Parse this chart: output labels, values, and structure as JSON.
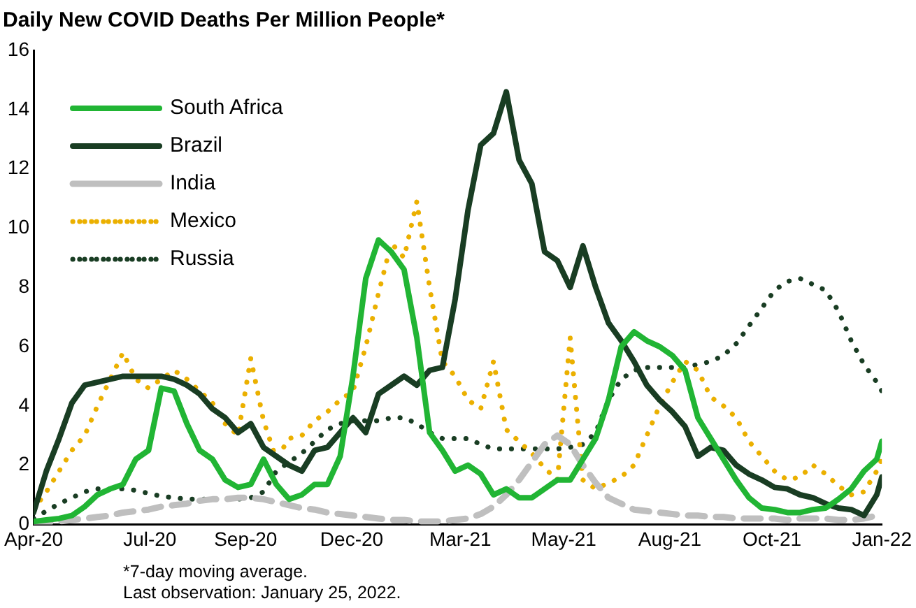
{
  "chart_data": {
    "type": "line",
    "title": "Daily New COVID Deaths Per Million People*",
    "x": [
      "2020-04-01",
      "2020-04-11",
      "2020-04-21",
      "2020-05-01",
      "2020-05-11",
      "2020-05-21",
      "2020-05-31",
      "2020-06-10",
      "2020-06-20",
      "2020-06-30",
      "2020-07-10",
      "2020-07-20",
      "2020-07-30",
      "2020-08-09",
      "2020-08-19",
      "2020-08-29",
      "2020-09-08",
      "2020-09-18",
      "2020-09-28",
      "2020-10-08",
      "2020-10-18",
      "2020-10-28",
      "2020-11-07",
      "2020-11-17",
      "2020-11-27",
      "2020-12-07",
      "2020-12-17",
      "2020-12-27",
      "2021-01-06",
      "2021-01-16",
      "2021-01-26",
      "2021-02-05",
      "2021-02-15",
      "2021-02-25",
      "2021-03-07",
      "2021-03-17",
      "2021-03-27",
      "2021-04-06",
      "2021-04-16",
      "2021-04-26",
      "2021-05-06",
      "2021-05-16",
      "2021-05-26",
      "2021-06-05",
      "2021-06-15",
      "2021-06-25",
      "2021-07-05",
      "2021-07-15",
      "2021-07-25",
      "2021-08-04",
      "2021-08-14",
      "2021-08-24",
      "2021-09-03",
      "2021-09-13",
      "2021-09-23",
      "2021-10-03",
      "2021-10-13",
      "2021-10-23",
      "2021-11-02",
      "2021-11-12",
      "2021-11-22",
      "2021-12-02",
      "2021-12-12",
      "2021-12-22",
      "2022-01-01",
      "2022-01-11",
      "2022-01-21",
      "2022-01-25"
    ],
    "series": [
      {
        "name": "South Africa",
        "color": "#21b534",
        "line_style": "solid",
        "values": [
          0.1,
          0.15,
          0.2,
          0.3,
          0.6,
          1.0,
          1.2,
          1.35,
          2.2,
          2.5,
          4.6,
          4.5,
          3.4,
          2.5,
          2.2,
          1.5,
          1.25,
          1.35,
          2.2,
          1.35,
          0.85,
          1.0,
          1.35,
          1.35,
          2.3,
          5.0,
          8.3,
          9.6,
          9.2,
          8.6,
          6.3,
          3.1,
          2.5,
          1.8,
          2.0,
          1.7,
          1.0,
          1.2,
          0.9,
          0.9,
          1.2,
          1.5,
          1.5,
          2.2,
          2.9,
          4.2,
          6.0,
          6.5,
          6.2,
          6.0,
          5.7,
          5.2,
          3.6,
          2.9,
          2.2,
          1.5,
          0.9,
          0.55,
          0.5,
          0.4,
          0.4,
          0.5,
          0.55,
          0.85,
          1.2,
          1.8,
          2.2,
          2.8
        ]
      },
      {
        "name": "Brazil",
        "color": "#193d23",
        "line_style": "solid",
        "values": [
          0.4,
          1.8,
          2.9,
          4.1,
          4.7,
          4.8,
          4.9,
          5.0,
          5.0,
          5.0,
          5.0,
          4.9,
          4.7,
          4.4,
          3.9,
          3.6,
          3.1,
          3.4,
          2.6,
          2.3,
          2.0,
          1.8,
          2.5,
          2.6,
          3.1,
          3.6,
          3.1,
          4.4,
          4.7,
          5.0,
          4.7,
          5.2,
          5.3,
          7.6,
          10.6,
          12.8,
          13.2,
          14.6,
          12.3,
          11.5,
          9.2,
          8.9,
          8.0,
          9.4,
          8.0,
          6.8,
          6.2,
          5.5,
          4.7,
          4.2,
          3.8,
          3.3,
          2.3,
          2.6,
          2.5,
          2.0,
          1.7,
          1.5,
          1.25,
          1.2,
          1.0,
          0.9,
          0.7,
          0.55,
          0.5,
          0.3,
          1.0,
          1.6
        ]
      },
      {
        "name": "India",
        "color": "#bfbfbf",
        "line_style": "dashed",
        "values": [
          0,
          0.05,
          0.1,
          0.15,
          0.2,
          0.25,
          0.3,
          0.4,
          0.45,
          0.5,
          0.6,
          0.65,
          0.7,
          0.8,
          0.85,
          0.85,
          0.9,
          0.9,
          0.85,
          0.75,
          0.65,
          0.55,
          0.5,
          0.4,
          0.35,
          0.3,
          0.25,
          0.2,
          0.15,
          0.15,
          0.1,
          0.1,
          0.1,
          0.15,
          0.2,
          0.35,
          0.6,
          1.0,
          1.5,
          2.1,
          2.7,
          3.0,
          2.7,
          2.0,
          1.4,
          0.9,
          0.7,
          0.5,
          0.45,
          0.4,
          0.35,
          0.3,
          0.3,
          0.25,
          0.25,
          0.2,
          0.2,
          0.2,
          0.2,
          0.15,
          0.2,
          0.2,
          0.2,
          0.15,
          0.15,
          0.2,
          0.3,
          0.3
        ]
      },
      {
        "name": "Mexico",
        "color": "#ebb000",
        "line_style": "dotted",
        "values": [
          0.5,
          1.1,
          1.8,
          2.5,
          3.0,
          4.0,
          4.9,
          5.8,
          4.9,
          4.6,
          4.9,
          5.2,
          4.9,
          4.5,
          4.1,
          3.4,
          3.0,
          5.6,
          3.5,
          2.2,
          2.9,
          3.0,
          3.5,
          3.8,
          4.2,
          4.5,
          6.0,
          7.8,
          9.5,
          9.0,
          10.9,
          8.0,
          5.5,
          5.0,
          4.2,
          3.9,
          5.5,
          3.2,
          2.8,
          2.4,
          1.9,
          1.5,
          6.3,
          1.5,
          1.2,
          1.4,
          1.6,
          2.0,
          3.0,
          4.0,
          4.8,
          5.5,
          5.2,
          4.3,
          4.0,
          3.6,
          2.8,
          2.3,
          1.8,
          1.5,
          1.6,
          2.0,
          1.7,
          1.3,
          1.0,
          1.1,
          1.8,
          2.2
        ]
      },
      {
        "name": "Russia",
        "color": "#193d23",
        "line_style": "dotted",
        "values": [
          0.2,
          0.45,
          0.7,
          0.9,
          1.1,
          1.2,
          1.2,
          1.2,
          1.15,
          1.05,
          0.95,
          0.9,
          0.85,
          0.85,
          0.85,
          0.85,
          0.85,
          0.9,
          1.1,
          1.8,
          2.1,
          2.4,
          2.8,
          3.2,
          3.4,
          3.5,
          3.5,
          3.5,
          3.6,
          3.6,
          3.4,
          3.1,
          2.9,
          2.9,
          2.9,
          2.7,
          2.55,
          2.55,
          2.55,
          2.55,
          2.55,
          2.55,
          2.6,
          2.7,
          3.1,
          4.2,
          4.9,
          5.2,
          5.3,
          5.3,
          5.3,
          5.3,
          5.4,
          5.5,
          5.7,
          6.1,
          6.7,
          7.3,
          7.9,
          8.2,
          8.3,
          8.1,
          7.9,
          7.2,
          6.2,
          5.4,
          4.8,
          4.5
        ]
      }
    ],
    "xlim": [
      "2020-04-01",
      "2022-01-25"
    ],
    "xticks": [
      {
        "value": "2020-04-01",
        "label": "Apr-20"
      },
      {
        "value": "2020-07-01",
        "label": "Jul-20"
      },
      {
        "value": "2020-09-14",
        "label": "Sep-20"
      },
      {
        "value": "2020-12-06",
        "label": "Dec-20"
      },
      {
        "value": "2021-03-01",
        "label": "Mar-21"
      },
      {
        "value": "2021-05-21",
        "label": "May-21"
      },
      {
        "value": "2021-08-12",
        "label": "Aug-21"
      },
      {
        "value": "2021-10-31",
        "label": "Oct-21"
      },
      {
        "value": "2022-01-25",
        "label": "Jan-22"
      }
    ],
    "ylim": [
      0,
      16
    ],
    "yticks": [
      0,
      2,
      4,
      6,
      8,
      10,
      12,
      14,
      16
    ],
    "grid": false,
    "legend": "top left",
    "marker": "none",
    "annotations": [
      "*7-day moving average.",
      "Last observation: January 25, 2022."
    ]
  }
}
